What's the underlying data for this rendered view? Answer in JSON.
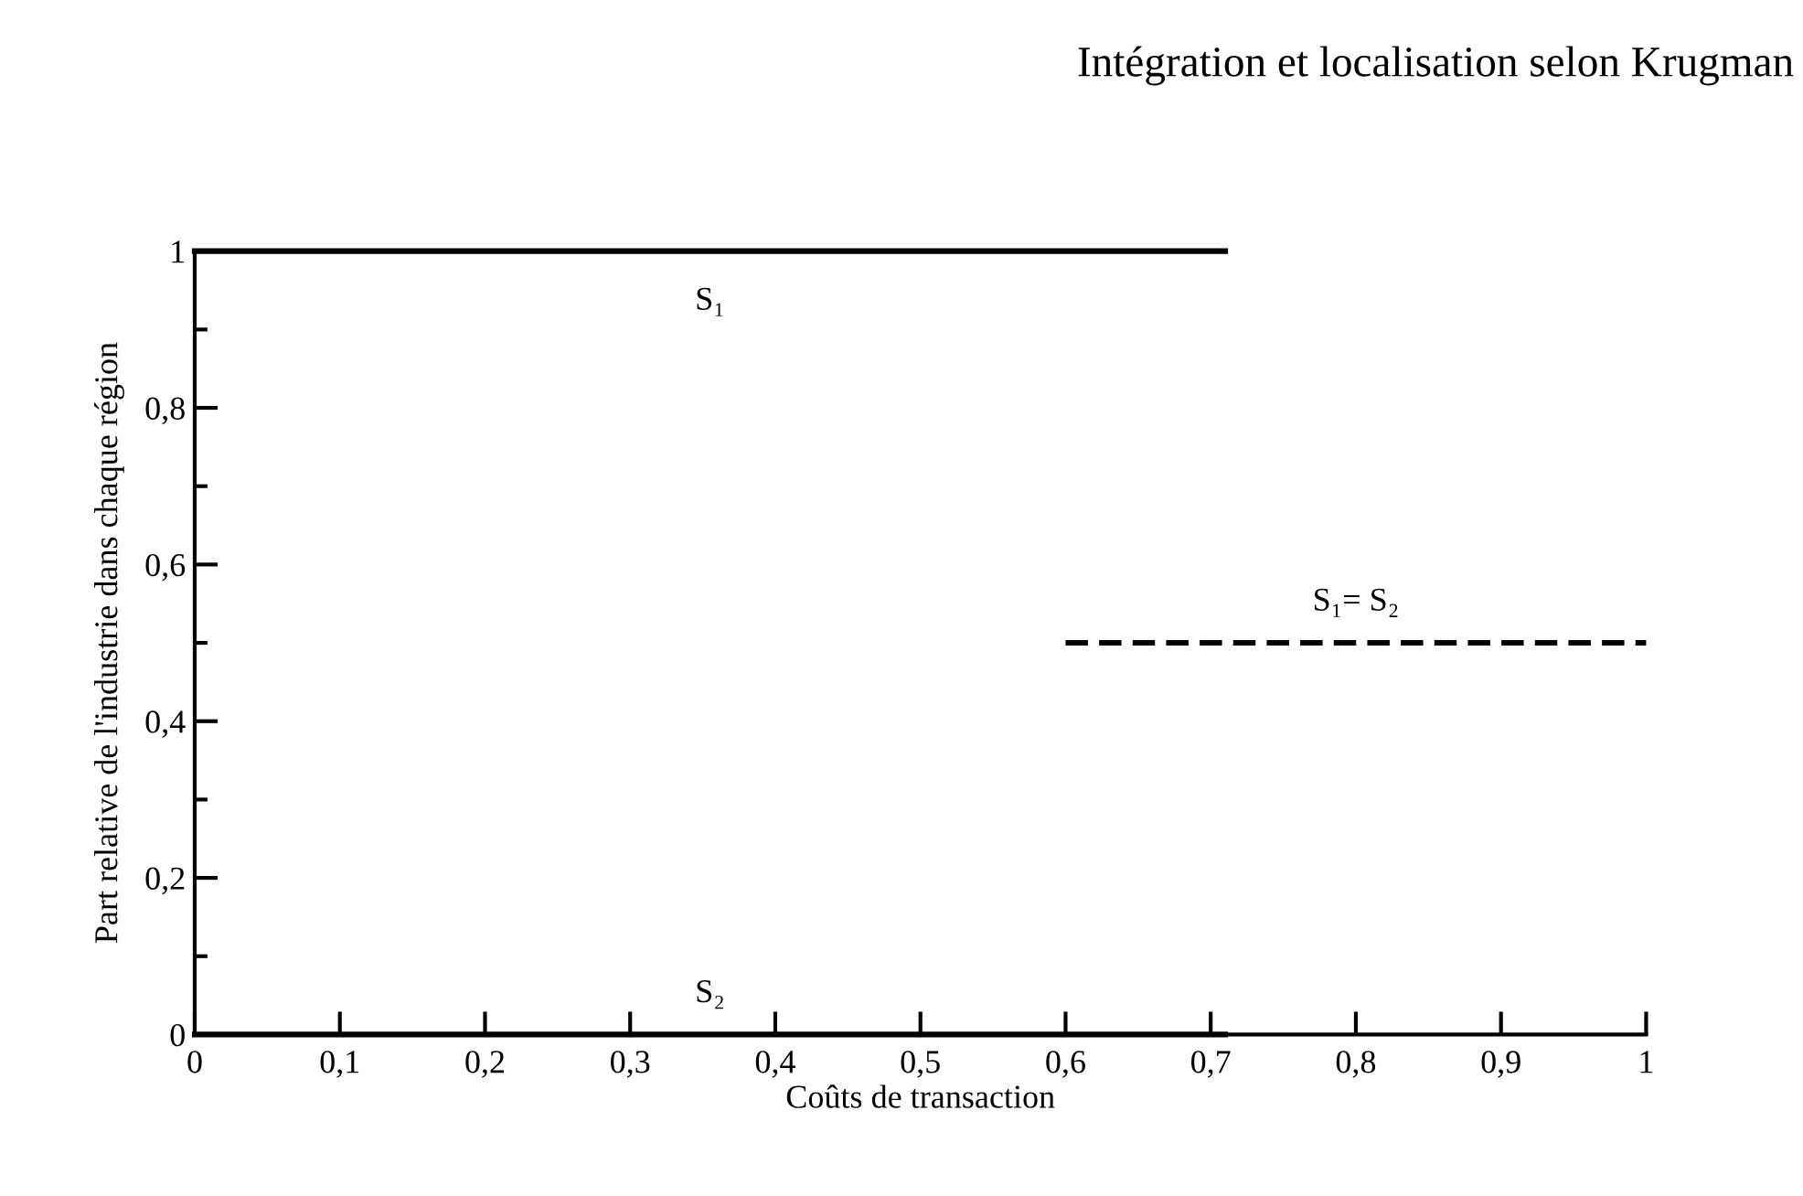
{
  "chart_data": {
    "type": "line",
    "title": "Intégration et localisation selon Krugman",
    "xlabel": "Coûts de transaction",
    "ylabel": "Part relative de l'industrie dans chaque région",
    "xlim": [
      0,
      1
    ],
    "ylim": [
      0,
      1
    ],
    "xticks": [
      0,
      {
        "value": 0.1,
        "label": "0,1"
      },
      {
        "value": 0.2,
        "label": "0,2"
      },
      {
        "value": 0.3,
        "label": "0,3"
      },
      {
        "value": 0.4,
        "label": "0,4"
      },
      {
        "value": 0.5,
        "label": "0,5"
      },
      {
        "value": 0.6,
        "label": "0,6"
      },
      {
        "value": 0.7,
        "label": "0,7"
      },
      {
        "value": 0.8,
        "label": "0,8"
      },
      {
        "value": 0.9,
        "label": "0,9"
      },
      1
    ],
    "yticks": [
      0,
      {
        "value": 0.1,
        "label": null
      },
      {
        "value": 0.2,
        "label": "0,2"
      },
      {
        "value": 0.3,
        "label": null
      },
      {
        "value": 0.4,
        "label": "0,4"
      },
      {
        "value": 0.5,
        "label": null
      },
      {
        "value": 0.6,
        "label": "0,6"
      },
      {
        "value": 0.7,
        "label": null
      },
      {
        "value": 0.8,
        "label": "0,8"
      },
      {
        "value": 0.9,
        "label": null
      },
      1
    ],
    "grid": false,
    "legend": false,
    "marker": "none",
    "series": [
      {
        "name": "S₁",
        "color": "#000000",
        "x": [
          0,
          0.71
        ],
        "values": [
          1,
          1
        ],
        "line_style": "solid"
      },
      {
        "name": "S₂",
        "color": "#000000",
        "x": [
          0,
          0.71
        ],
        "values": [
          0,
          0
        ],
        "line_style": "solid"
      },
      {
        "name": "S₁= S₂",
        "color": "#000000",
        "x": [
          0.6,
          1
        ],
        "values": [
          0.5,
          0.5
        ],
        "line_style": "dashed"
      }
    ]
  }
}
